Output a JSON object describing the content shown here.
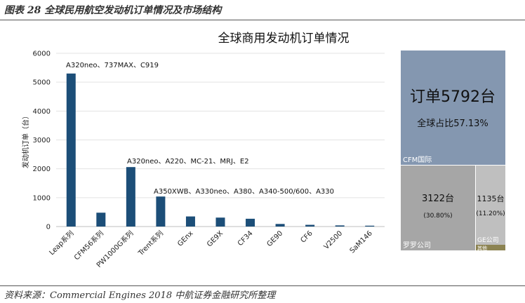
{
  "header": {
    "caption": "图表 28 全球民用航空发动机订单情况及市场结构"
  },
  "footer": {
    "source": "资料来源：Commercial Engines 2018 中航证券金融研究所整理"
  },
  "colors": {
    "bar": "#1c4e78",
    "cfm": "#8497b0",
    "rr": "#a6a6a6",
    "ge": "#bfbfbf",
    "other": "#8c8352"
  },
  "chart_data": [
    {
      "type": "bar",
      "title": "全球商用发动机订单情况",
      "ylabel": "发动机订单（台）",
      "xlabel": "",
      "ylim": [
        0,
        6000
      ],
      "yticks": [
        "0",
        "1000",
        "2000",
        "3000",
        "4000",
        "5000",
        "6000"
      ],
      "categories": [
        "Leap系列",
        "CFM56系列",
        "PW1000G系列",
        "Trent系列",
        "GEnx",
        "GE9X",
        "CF34",
        "GE90",
        "CF6",
        "V2500",
        "SaM146"
      ],
      "values": [
        5300,
        480,
        2060,
        1040,
        350,
        310,
        270,
        90,
        60,
        40,
        30
      ],
      "grid": true,
      "annotations": [
        {
          "category": "Leap系列",
          "text": "A320neo、737MAX、C919"
        },
        {
          "category": "PW1000G系列",
          "text": "A320neo、A220、MC-21、MRJ、E2"
        },
        {
          "category": "Trent系列",
          "text": "A350XWB、A330neo、A380、A340-500/600、A330"
        }
      ]
    },
    {
      "type": "treemap",
      "items": [
        {
          "name": "CFM国际",
          "label": "订单5792台",
          "share": "全球占比57.13%"
        },
        {
          "name": "罗罗公司",
          "label": "3122台",
          "share": "(30.80%)"
        },
        {
          "name": "GE公司",
          "label": "1135台",
          "share": "(11.20%)"
        },
        {
          "name": "其他",
          "label": "",
          "share": ""
        }
      ]
    }
  ]
}
